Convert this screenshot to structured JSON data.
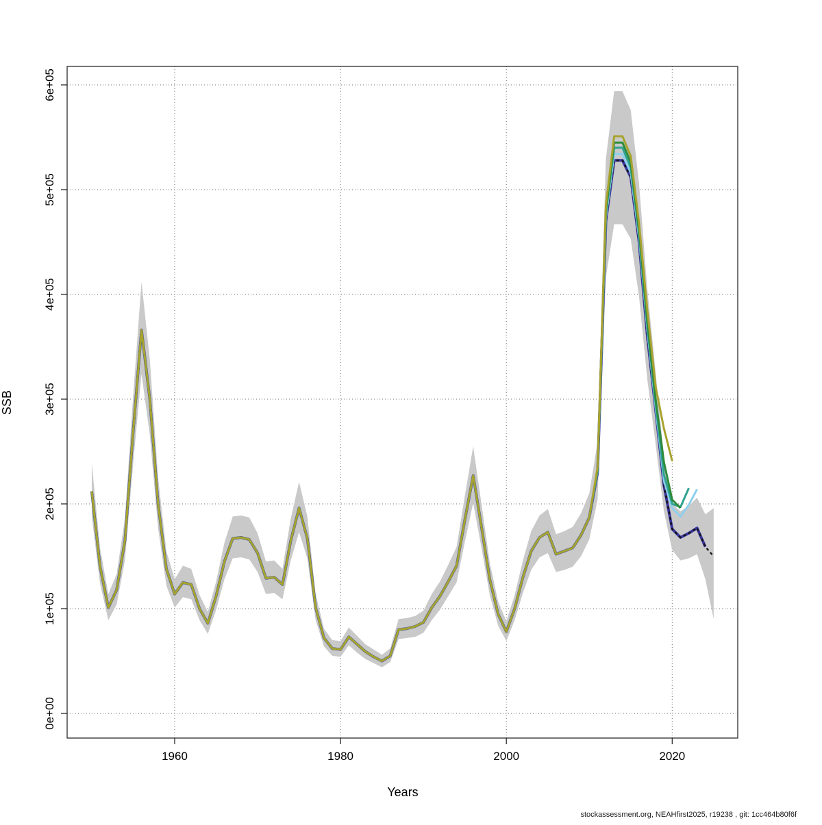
{
  "footer": {
    "text": "stockassessment.org, NEAHfirst2025, r19238 , git: 1cc464b80f6f"
  },
  "chart_data": {
    "type": "line",
    "title": "",
    "xlabel": "Years",
    "ylabel": "SSB",
    "grid": "dotted",
    "legend_position": "none",
    "xlim": [
      1947,
      2028
    ],
    "ylim": [
      -23500,
      617500
    ],
    "x_ticks": [
      1960,
      1980,
      2000,
      2020
    ],
    "y_ticks": [
      0,
      100000,
      200000,
      300000,
      400000,
      500000,
      600000
    ],
    "y_tick_labels": [
      "0e+00",
      "1e+05",
      "2e+05",
      "3e+05",
      "4e+05",
      "5e+05",
      "6e+05"
    ],
    "start_year": 1950,
    "shared_history_through": 2010,
    "band": {
      "name": "confidence-band-current-run",
      "color": "#c9c9c9",
      "lower": [
        188000,
        124000,
        89000,
        104000,
        146000,
        239000,
        324000,
        266000,
        177000,
        122000,
        101000,
        111000,
        109000,
        89000,
        76000,
        99000,
        128000,
        148000,
        149000,
        147000,
        135000,
        114000,
        115000,
        109000,
        146000,
        173000,
        148000,
        89000,
        64000,
        55000,
        54000,
        65000,
        58000,
        52000,
        48000,
        44000,
        49000,
        71000,
        72000,
        73000,
        77000,
        89000,
        99000,
        112000,
        125000,
        164000,
        201000,
        158000,
        113000,
        84000,
        69000,
        89000,
        115000,
        137000,
        149000,
        153000,
        135000,
        137000,
        140000,
        150000,
        166000,
        204000,
        416000,
        467000,
        467000,
        453000,
        398000,
        319000,
        257000,
        193000,
        156000,
        146000,
        148000,
        152000,
        128000,
        90000
      ],
      "upper": [
        239000,
        158000,
        114000,
        133000,
        186000,
        304000,
        412000,
        338000,
        225000,
        155000,
        128000,
        141000,
        138000,
        113000,
        97000,
        126000,
        163000,
        188000,
        189000,
        187000,
        172000,
        145000,
        146000,
        138000,
        186000,
        221000,
        188000,
        114000,
        81000,
        70000,
        69000,
        82000,
        74000,
        66000,
        61000,
        56000,
        62000,
        90000,
        91000,
        93000,
        98000,
        114000,
        126000,
        142000,
        159000,
        208000,
        255000,
        200000,
        144000,
        107000,
        88000,
        113000,
        146000,
        174000,
        189000,
        195000,
        171000,
        174000,
        178000,
        191000,
        210000,
        259000,
        529000,
        594000,
        594000,
        576000,
        506000,
        405000,
        326000,
        245000,
        200000,
        193000,
        198000,
        206000,
        190000,
        196000
      ]
    },
    "current_run": {
      "name": "run-ending-2025-current",
      "color": "#141414",
      "style": "dashed",
      "end_year": 2025,
      "values": [
        212000,
        140000,
        101000,
        118000,
        165000,
        270000,
        366000,
        300000,
        200000,
        138000,
        114000,
        125000,
        123000,
        100000,
        86000,
        112000,
        145000,
        167000,
        168000,
        166000,
        153000,
        129000,
        130000,
        123000,
        165000,
        196000,
        167000,
        101000,
        72000,
        62000,
        61000,
        73000,
        66000,
        59000,
        54000,
        50000,
        55000,
        80000,
        81000,
        83000,
        87000,
        101000,
        112000,
        126000,
        141000,
        185000,
        227000,
        178000,
        128000,
        95000,
        78000,
        100000,
        130000,
        155000,
        168000,
        173000,
        152000,
        155000,
        158000,
        170000,
        187000,
        230000,
        470000,
        528000,
        528000,
        512000,
        450000,
        360000,
        290000,
        218000,
        176000,
        168000,
        172000,
        177000,
        159000,
        150000
      ]
    },
    "runs": [
      {
        "name": "run-ending-2024",
        "color": "#39359e",
        "style": "solid",
        "width": 4,
        "values_start_year": 2011,
        "end_year": 2024,
        "values": [
          230000,
          470000,
          528000,
          528000,
          512000,
          450000,
          360000,
          290000,
          218000,
          176000,
          168000,
          172000,
          177000,
          159000
        ]
      },
      {
        "name": "run-ending-2023",
        "color": "#8fcfee",
        "style": "solid",
        "width": 3,
        "values_start_year": 2011,
        "end_year": 2023,
        "values": [
          231000,
          473000,
          534000,
          534000,
          516000,
          454000,
          366000,
          292000,
          222000,
          196000,
          188000,
          199000,
          214000
        ]
      },
      {
        "name": "run-ending-2022",
        "color": "#2fa390",
        "style": "solid",
        "width": 3,
        "values_start_year": 2011,
        "end_year": 2022,
        "values": [
          232000,
          477000,
          540000,
          540000,
          521000,
          458000,
          370000,
          296000,
          228000,
          200000,
          197000,
          215000
        ]
      },
      {
        "name": "run-ending-2021",
        "color": "#2e8b3c",
        "style": "solid",
        "width": 3,
        "values_start_year": 2011,
        "end_year": 2021,
        "values": [
          233000,
          480000,
          545000,
          545000,
          526000,
          462000,
          375000,
          300000,
          240000,
          204000,
          196000
        ]
      },
      {
        "name": "run-ending-2020",
        "color": "#a8a32f",
        "style": "solid",
        "width": 3,
        "values_start_year": 2011,
        "end_year": 2020,
        "values": [
          235000,
          485000,
          551000,
          551000,
          532000,
          468000,
          385000,
          312000,
          272000,
          241000
        ]
      }
    ]
  }
}
